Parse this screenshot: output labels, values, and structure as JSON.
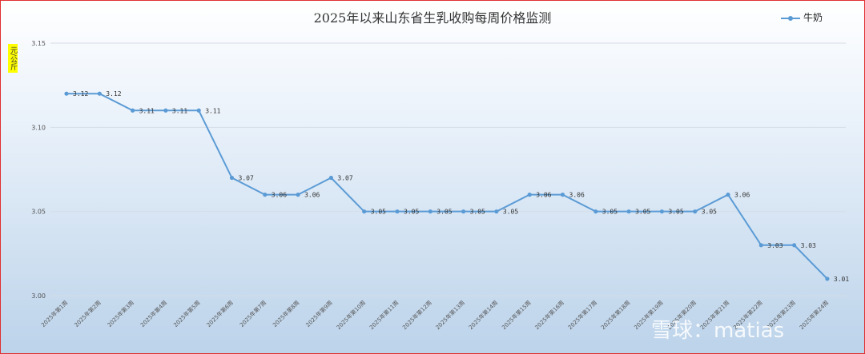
{
  "chart_data": {
    "type": "line",
    "title": "2025年以来山东省生乳收购每周价格监测",
    "ylabel": "元/公斤",
    "xlabel": "",
    "ylim": [
      3.0,
      3.15
    ],
    "yticks": [
      "3.00",
      "3.05",
      "3.10",
      "3.15"
    ],
    "grid": true,
    "legend_position": "top-right",
    "categories": [
      "2025年第1周",
      "2025年第2周",
      "2025年第3周",
      "2025年第4周",
      "2025年第5周",
      "2025年第6周",
      "2025年第7周",
      "2025年第8周",
      "2025年第9周",
      "2025年第10周",
      "2025年第11周",
      "2025年第12周",
      "2025年第13周",
      "2025年第14周",
      "2025年第15周",
      "2025年第16周",
      "2025年第17周",
      "2025年第18周",
      "2025年第19周",
      "2025年第20周",
      "2025年第21周",
      "2025年第22周",
      "2025年第23周",
      "2025年第24周"
    ],
    "series": [
      {
        "name": "牛奶",
        "color": "#5b9bd5",
        "values": [
          3.12,
          3.12,
          3.11,
          3.11,
          3.11,
          3.07,
          3.06,
          3.06,
          3.07,
          3.05,
          3.05,
          3.05,
          3.05,
          3.05,
          3.06,
          3.06,
          3.05,
          3.05,
          3.05,
          3.05,
          3.06,
          3.03,
          3.03,
          3.01
        ],
        "labels": [
          "3.12",
          "3.12",
          "3.11",
          "3.11",
          "3.11",
          "3.07",
          "3.06",
          "3.06",
          "3.07",
          "3.05",
          "3.05",
          "3.05",
          "3.05",
          "3.05",
          "3.06",
          "3.06",
          "3.05",
          "3.05",
          "3.05",
          "3.05",
          "3.06",
          "3.03",
          "3.03",
          "3.01"
        ]
      }
    ]
  },
  "watermark": "雪球：matias"
}
